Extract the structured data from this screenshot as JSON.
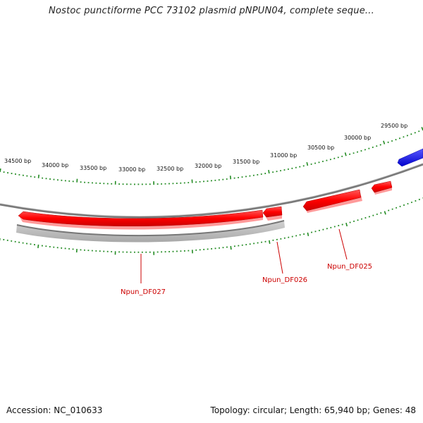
{
  "title": "Nostoc punctiforme PCC 73102 plasmid pNPUN04, complete seque...",
  "footer": {
    "accession": "Accession: NC_010633",
    "summary": "Topology: circular; Length: 65,940 bp; Genes: 48"
  },
  "scale_labels": [
    "34500 bp",
    "34000 bp",
    "33500 bp",
    "33000 bp",
    "32500 bp",
    "32000 bp",
    "31500 bp",
    "31000 bp",
    "30500 bp",
    "30000 bp",
    "29500 bp"
  ],
  "gene_labels": [
    "Npun_DF027",
    "Npun_DF026",
    "Npun_DF025"
  ],
  "colors": {
    "forward_gene": "#ff0000",
    "reverse_gene": "#0000ff",
    "backbone": "#888888",
    "ticks": "#228b22",
    "label": "#cc0000"
  }
}
